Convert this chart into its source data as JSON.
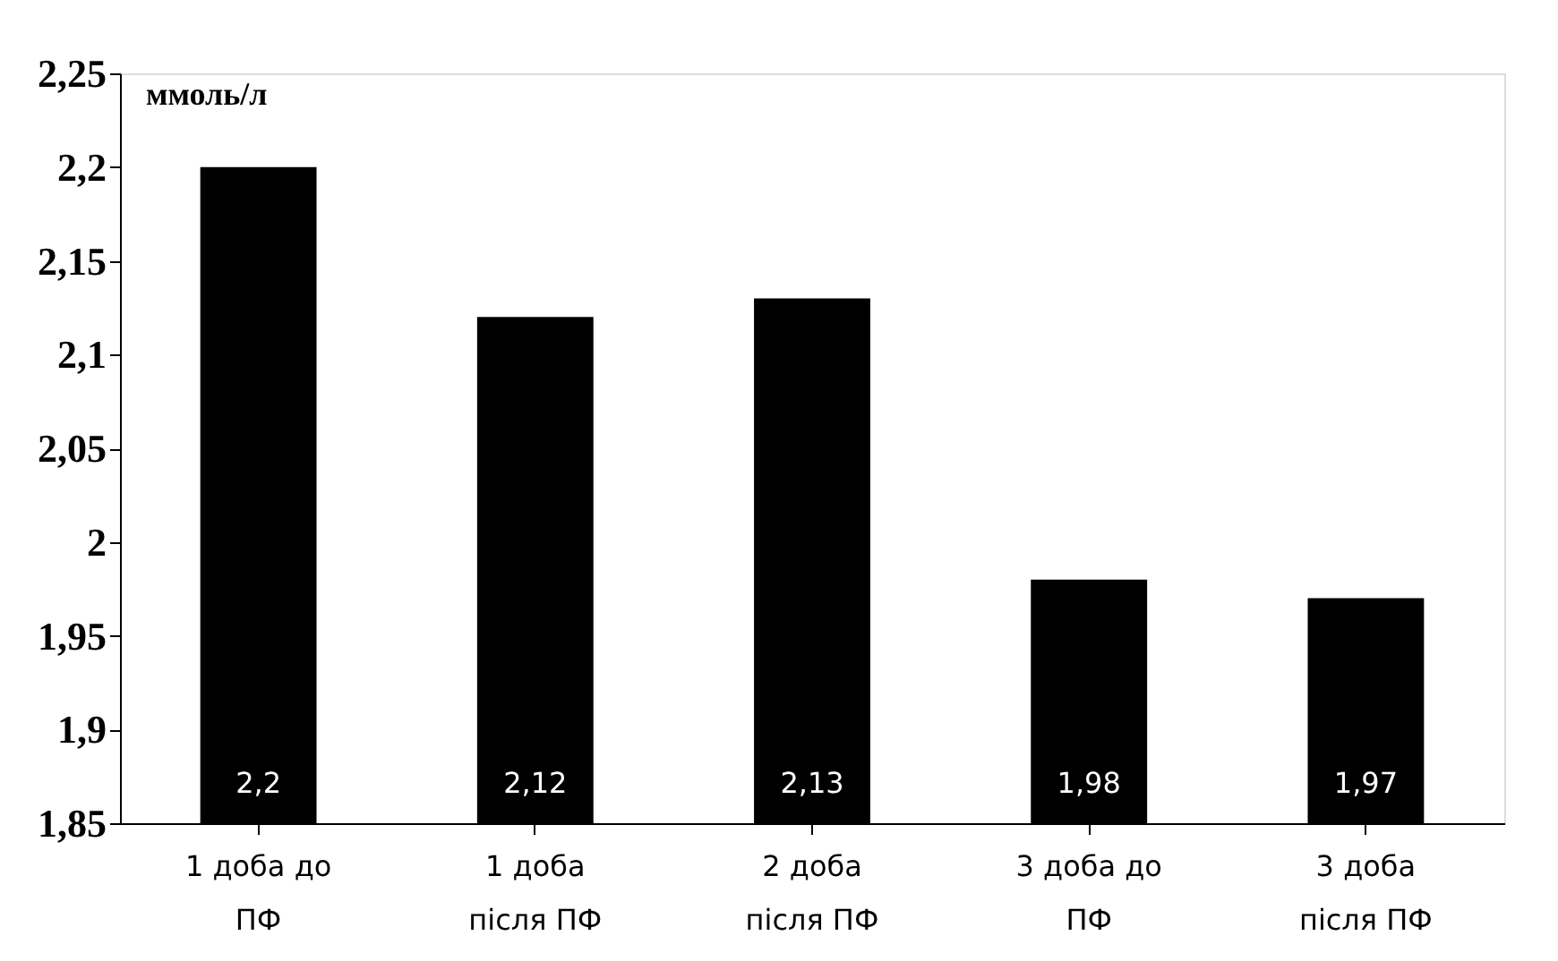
{
  "chart_data": {
    "type": "bar",
    "ylabel": "ммоль/л",
    "categories": [
      "1 доба до ПФ",
      "1 доба після ПФ",
      "2 доба після ПФ",
      "3 доба до ПФ",
      "3 доба після ПФ"
    ],
    "values": [
      2.2,
      2.12,
      2.13,
      1.98,
      1.97
    ],
    "value_labels": [
      "2,2",
      "2,12",
      "2,13",
      "1,98",
      "1,97"
    ],
    "color": "#000000",
    "ylim": [
      1.85,
      2.25
    ],
    "yticks": [
      {
        "value": 1.85,
        "label": "1,85"
      },
      {
        "value": 1.9,
        "label": "1,9"
      },
      {
        "value": 1.95,
        "label": "1,95"
      },
      {
        "value": 2,
        "label": "2"
      },
      {
        "value": 2.05,
        "label": "2,05"
      },
      {
        "value": 2.1,
        "label": "2,1"
      },
      {
        "value": 2.15,
        "label": "2,15"
      },
      {
        "value": 2.2,
        "label": "2,2"
      },
      {
        "value": 2.25,
        "label": "2,25"
      }
    ],
    "grid": false
  }
}
